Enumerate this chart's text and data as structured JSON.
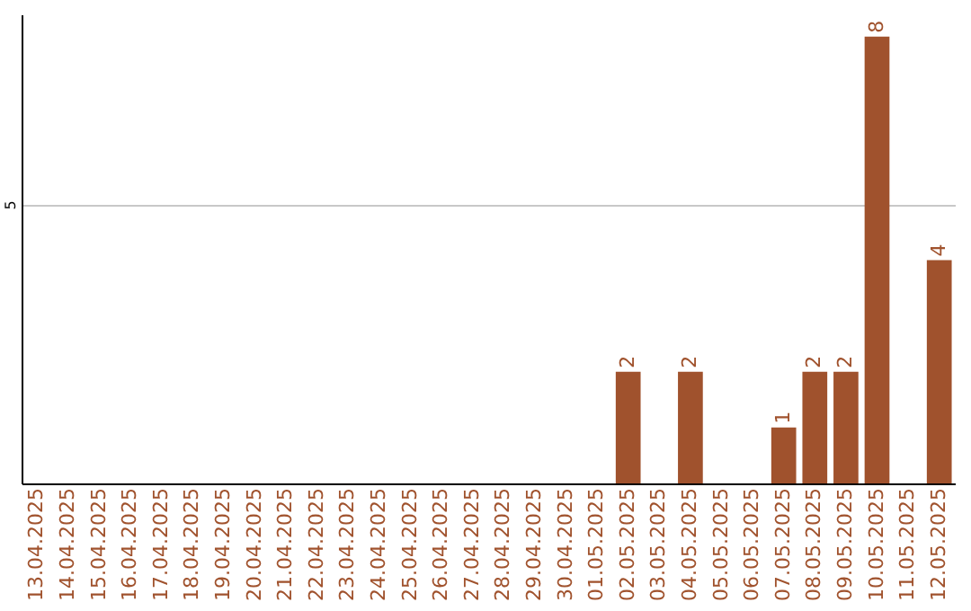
{
  "chart_data": {
    "type": "bar",
    "categories": [
      "13.04.2025",
      "14.04.2025",
      "15.04.2025",
      "16.04.2025",
      "17.04.2025",
      "18.04.2025",
      "19.04.2025",
      "20.04.2025",
      "21.04.2025",
      "22.04.2025",
      "23.04.2025",
      "24.04.2025",
      "25.04.2025",
      "26.04.2025",
      "27.04.2025",
      "28.04.2025",
      "29.04.2025",
      "30.04.2025",
      "01.05.2025",
      "02.05.2025",
      "03.05.2025",
      "04.05.2025",
      "05.05.2025",
      "06.05.2025",
      "07.05.2025",
      "08.05.2025",
      "09.05.2025",
      "10.05.2025",
      "11.05.2025",
      "12.05.2025"
    ],
    "values": [
      null,
      null,
      null,
      null,
      null,
      null,
      null,
      null,
      null,
      null,
      null,
      null,
      null,
      null,
      null,
      null,
      null,
      null,
      null,
      2,
      null,
      2,
      null,
      null,
      1,
      2,
      2,
      8,
      null,
      4
    ],
    "color": "#a0522d",
    "ylim": [
      0,
      8.4
    ],
    "yticks": [
      5
    ],
    "grid": "y",
    "data_labels": true
  }
}
